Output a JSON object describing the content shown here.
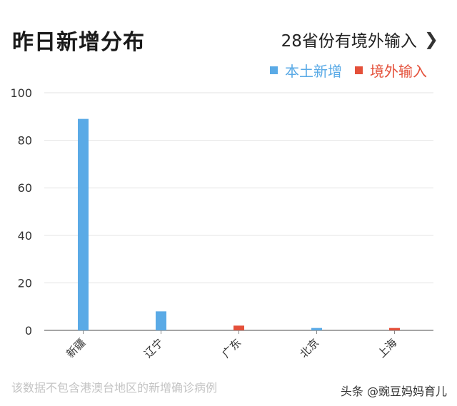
{
  "header": {
    "title": "昨日新增分布",
    "link_label": "28省份有境外输入",
    "chevron_icon": "chevron-right-icon"
  },
  "legend": {
    "local": "本土新增",
    "imported": "境外输入"
  },
  "colors": {
    "local": "#5aaae6",
    "imported": "#e4503a",
    "axis": "#888888",
    "grid": "#e3e3e3"
  },
  "chart_data": {
    "type": "bar",
    "categories": [
      "新疆",
      "辽宁",
      "广东",
      "北京",
      "上海"
    ],
    "series": [
      {
        "name": "本土新增",
        "key": "local",
        "values": [
          89,
          8,
          0,
          1,
          0
        ]
      },
      {
        "name": "境外输入",
        "key": "imported",
        "values": [
          0,
          0,
          2,
          0,
          1
        ]
      }
    ],
    "ylim": [
      0,
      100
    ],
    "yticks": [
      0,
      20,
      40,
      60,
      80,
      100
    ],
    "grid": true,
    "legend_position": "top-right"
  },
  "footnote": "该数据不包含港澳台地区的新增确诊病例",
  "credit": "头条 @豌豆妈妈育儿"
}
